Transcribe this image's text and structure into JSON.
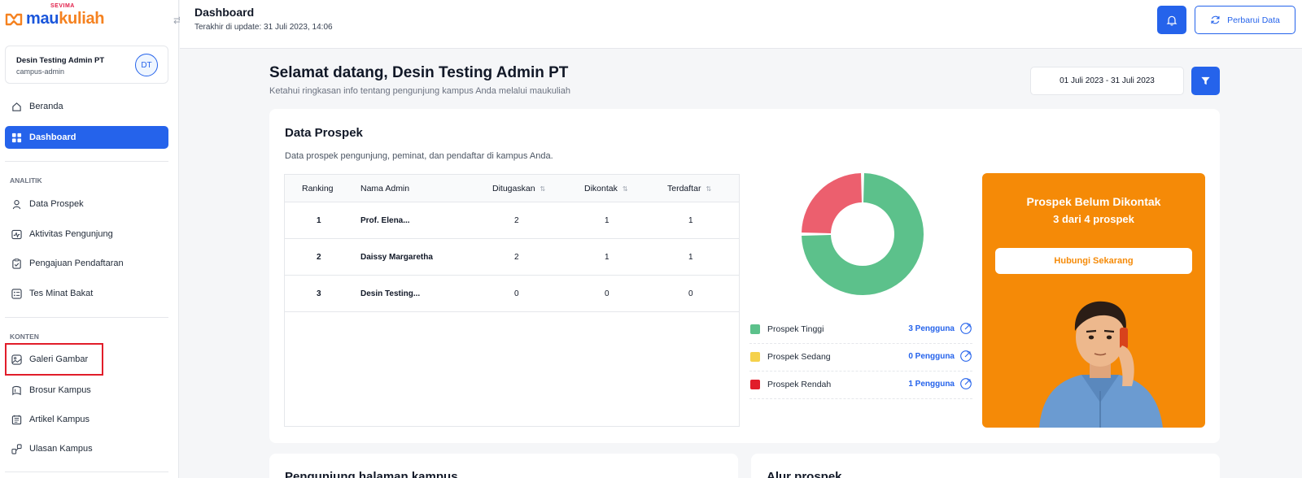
{
  "brand": {
    "small": "SEVIMA",
    "name_a": "mau",
    "name_b": "kuliah"
  },
  "user": {
    "name": "Desin Testing Admin PT",
    "role": "campus-admin",
    "initials": "DT"
  },
  "nav": {
    "main": [
      {
        "label": "Beranda",
        "icon": "home-icon"
      },
      {
        "label": "Dashboard",
        "icon": "grid-icon",
        "active": true
      }
    ],
    "analitik_title": "ANALITIK",
    "analitik": [
      {
        "label": "Data Prospek",
        "icon": "user-icon"
      },
      {
        "label": "Aktivitas Pengunjung",
        "icon": "activity-icon"
      },
      {
        "label": "Pengajuan Pendaftaran",
        "icon": "clipboard-check-icon"
      },
      {
        "label": "Tes Minat Bakat",
        "icon": "checklist-icon"
      }
    ],
    "konten_title": "KONTEN",
    "konten": [
      {
        "label": "Galeri Gambar",
        "icon": "image-icon"
      },
      {
        "label": "Brosur Kampus",
        "icon": "brochure-icon"
      },
      {
        "label": "Artikel Kampus",
        "icon": "article-icon"
      },
      {
        "label": "Ulasan Kampus",
        "icon": "review-icon"
      }
    ]
  },
  "header": {
    "title": "Dashboard",
    "subtitle": "Terakhir di update: 31 Juli 2023, 14:06",
    "refresh_label": "Perbarui Data"
  },
  "main": {
    "welcome": "Selamat datang, Desin Testing Admin PT",
    "welcome_sub": "Ketahui ringkasan info tentang pengunjung kampus Anda melalui maukuliah",
    "date_range": "01 Juli 2023 - 31 Juli 2023"
  },
  "prospek": {
    "title": "Data Prospek",
    "subtitle": "Data prospek pengunjung, peminat, dan pendaftar di kampus Anda.",
    "columns": [
      "Ranking",
      "Nama Admin",
      "Ditugaskan",
      "Dikontak",
      "Terdaftar"
    ],
    "rows": [
      {
        "rank": "1",
        "name": "Prof. Elena...",
        "ditugaskan": "2",
        "dikontak": "1",
        "terdaftar": "1"
      },
      {
        "rank": "2",
        "name": "Daissy Margaretha",
        "ditugaskan": "2",
        "dikontak": "1",
        "terdaftar": "1"
      },
      {
        "rank": "3",
        "name": "Desin Testing...",
        "ditugaskan": "0",
        "dikontak": "0",
        "terdaftar": "0"
      }
    ],
    "chart_data": {
      "type": "pie",
      "categories": [
        "Prospek Tinggi",
        "Prospek Sedang",
        "Prospek Rendah"
      ],
      "values": [
        3,
        0,
        1
      ],
      "colors": [
        "#5cc18b",
        "#f5d14b",
        "#ec5f6e"
      ]
    },
    "legend": [
      {
        "label": "Prospek Tinggi",
        "count": "3 Pengguna",
        "color": "#5cc18b"
      },
      {
        "label": "Prospek Sedang",
        "count": "0 Pengguna",
        "color": "#f5d14b"
      },
      {
        "label": "Prospek Rendah",
        "count": "1 Pengguna",
        "color": "#e11d2a"
      }
    ],
    "promo": {
      "title": "Prospek Belum Dikontak",
      "subtitle": "3 dari 4 prospek",
      "button": "Hubungi Sekarang"
    }
  },
  "bottom": {
    "left_title": "Pengunjung halaman kampus",
    "right_title": "Alur prospek"
  },
  "colors": {
    "primary": "#2563eb",
    "accent": "#f58a07"
  }
}
